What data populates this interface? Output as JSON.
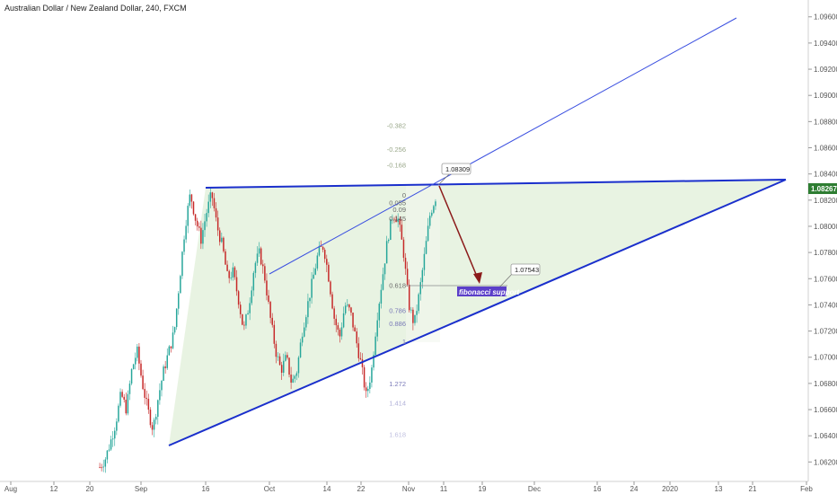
{
  "title": "Australian Dollar / New Zealand Dollar, 240, FXCM",
  "chart_data": {
    "type": "candlestick",
    "symbol": "AUDNZD",
    "interval": "240",
    "source": "FXCM",
    "y_ticks": [
      "1.09600",
      "1.09400",
      "1.09200",
      "1.09000",
      "1.08800",
      "1.08600",
      "1.08400",
      "1.08200",
      "1.08000",
      "1.07800",
      "1.07600",
      "1.07400",
      "1.07200",
      "1.07000",
      "1.06800",
      "1.06600",
      "1.06400",
      "1.06200"
    ],
    "y_range": [
      1.0612,
      1.0966
    ],
    "x_ticks": [
      "Aug",
      "12",
      "20",
      "Sep",
      "16",
      "Oct",
      "14",
      "22",
      "Nov",
      "11",
      "19",
      "Dec",
      "16",
      "24",
      "2020",
      "13",
      "21",
      "Feb"
    ],
    "last_price": "1.08267",
    "price_samples": [
      1.0616,
      1.0622,
      1.0635,
      1.065,
      1.0672,
      1.066,
      1.069,
      1.0705,
      1.068,
      1.066,
      1.0645,
      1.067,
      1.069,
      1.0705,
      1.072,
      1.076,
      1.08,
      1.0825,
      1.0805,
      1.079,
      1.081,
      1.0825,
      1.08,
      1.0785,
      1.076,
      1.0765,
      1.0745,
      1.072,
      1.074,
      1.077,
      1.078,
      1.076,
      1.073,
      1.0705,
      1.069,
      1.07,
      1.068,
      1.069,
      1.072,
      1.074,
      1.076,
      1.078,
      1.0785,
      1.076,
      1.073,
      1.0715,
      1.074,
      1.0735,
      1.0715,
      1.0695,
      1.067,
      1.069,
      1.073,
      1.076,
      1.079,
      1.081,
      1.0805,
      1.078,
      1.074,
      1.0725,
      1.075,
      1.078,
      1.081,
      1.0822
    ],
    "fibonacci": {
      "levels": [
        "-0.382",
        "-0.256",
        "-0.168",
        "0",
        "0.055",
        "0.09",
        "0.145",
        "0.618",
        "0.786",
        "0.886",
        "1",
        "1.272",
        "1.414",
        "1.618"
      ],
      "prices": [
        1.0877,
        1.0859,
        1.0847,
        1.0824,
        1.0818,
        1.0813,
        1.0806,
        1.0755,
        1.0736,
        1.0726,
        1.0712,
        1.068,
        1.0665,
        1.0641
      ]
    },
    "triangle": {
      "top_left": {
        "x": "Sep 16",
        "y": 1.0826
      },
      "bottom_left": {
        "x": "Sep 9",
        "y": 1.0641
      },
      "apex": {
        "x": "Jan 24",
        "y": 1.083
      }
    },
    "callouts": [
      {
        "text": "1.08309"
      },
      {
        "text": "1.07543"
      }
    ],
    "annotation": "fibonacci support"
  },
  "colors": {
    "up": "#26a69a",
    "down": "#c62828",
    "trend": "#1a2fcc",
    "triangle_fill": "#e8f3e2",
    "arrow": "#8b1a1a",
    "support_bg": "#5b3fc9",
    "price_tag": "#2e7d32"
  }
}
